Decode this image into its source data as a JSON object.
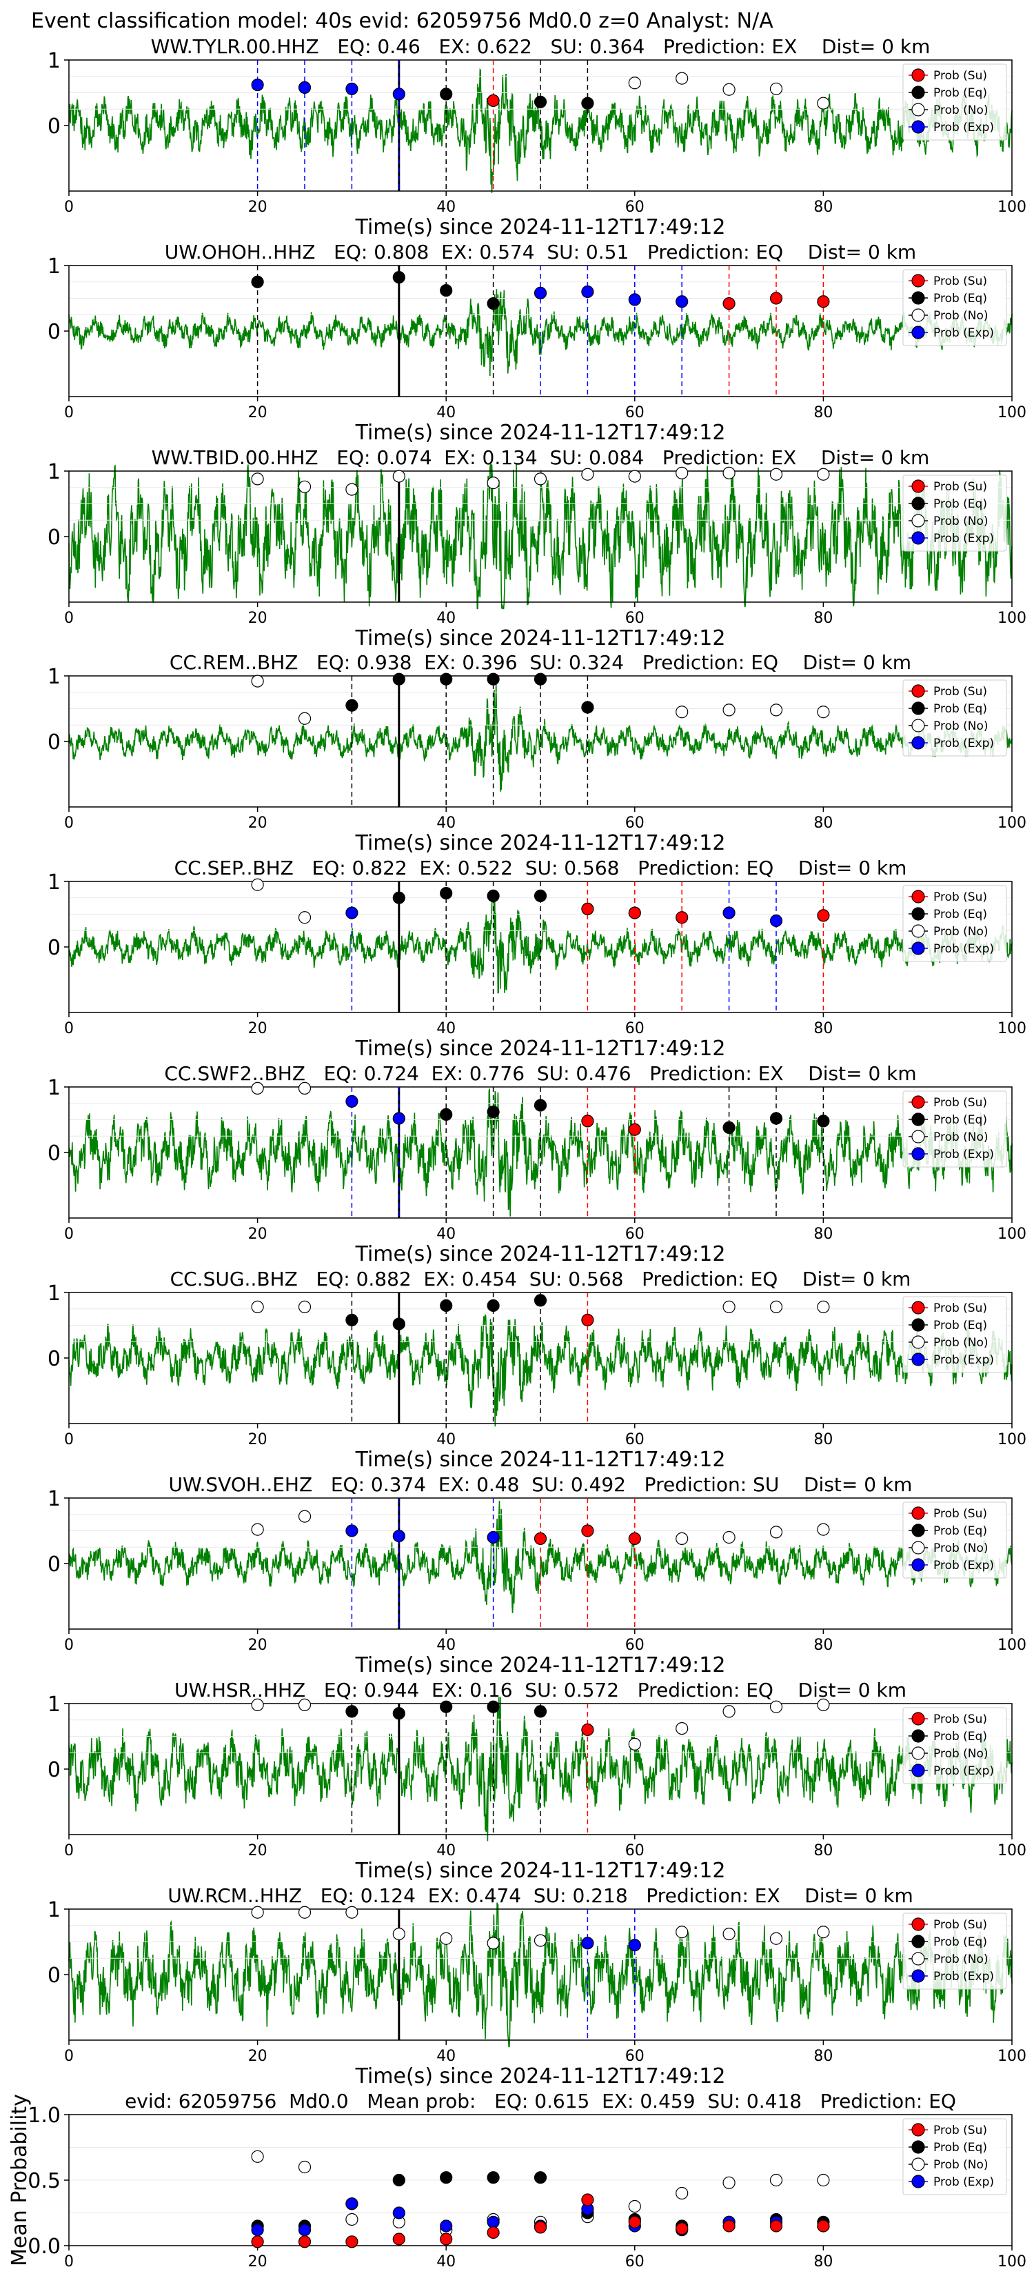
{
  "figure_title": "Event classification model: 40s evid: 62059756 Md0.0 z=0 Analyst: N/A",
  "legend_entries": [
    "Prob (Su)",
    "Prob (Eq)",
    "Prob (No)",
    "Prob (Exp)"
  ],
  "colors": {
    "waveform": "#008000",
    "su": "#ff0000",
    "eq": "#000000",
    "no": "#ffffff",
    "exp": "#0000ff"
  },
  "chart_data": [
    {
      "type": "scatter",
      "title": "WW.TYLR.00.HHZ   EQ: 0.46   EX: 0.622   SU: 0.364   Prediction: EX    Dist= 0 km",
      "xlabel": "Time(s) since 2024-11-12T17:49:12",
      "xlim": [
        0,
        100
      ],
      "ylim": [
        -1,
        1
      ],
      "x_ticks": [
        0,
        20,
        40,
        60,
        80,
        100
      ],
      "y_ticks": [
        0,
        1
      ],
      "pick_time": 35,
      "waveform_amplitude": 0.35,
      "points": [
        [
          20,
          0.62,
          "exp"
        ],
        [
          25,
          0.58,
          "exp"
        ],
        [
          30,
          0.56,
          "exp"
        ],
        [
          35,
          0.48,
          "exp"
        ],
        [
          40,
          0.48,
          "eq"
        ],
        [
          45,
          0.38,
          "su"
        ],
        [
          50,
          0.36,
          "eq"
        ],
        [
          55,
          0.34,
          "eq"
        ],
        [
          60,
          0.65,
          "no"
        ],
        [
          65,
          0.72,
          "no"
        ],
        [
          70,
          0.55,
          "no"
        ],
        [
          75,
          0.56,
          "no"
        ],
        [
          80,
          0.34,
          "no"
        ]
      ]
    },
    {
      "type": "scatter",
      "title": "UW.OHOH..HHZ   EQ: 0.808  EX: 0.574  SU: 0.51   Prediction: EQ    Dist= 0 km",
      "xlabel": "Time(s) since 2024-11-12T17:49:12",
      "xlim": [
        0,
        100
      ],
      "ylim": [
        -1,
        1
      ],
      "x_ticks": [
        0,
        20,
        40,
        60,
        80,
        100
      ],
      "y_ticks": [
        0,
        1
      ],
      "pick_time": 35,
      "waveform_amplitude": 0.2,
      "points": [
        [
          20,
          0.75,
          "eq"
        ],
        [
          35,
          0.82,
          "eq"
        ],
        [
          40,
          0.62,
          "eq"
        ],
        [
          45,
          0.42,
          "eq"
        ],
        [
          50,
          0.58,
          "exp"
        ],
        [
          55,
          0.6,
          "exp"
        ],
        [
          60,
          0.48,
          "exp"
        ],
        [
          65,
          0.45,
          "exp"
        ],
        [
          70,
          0.42,
          "su"
        ],
        [
          75,
          0.5,
          "su"
        ],
        [
          80,
          0.45,
          "su"
        ]
      ]
    },
    {
      "type": "scatter",
      "title": "WW.TBID.00.HHZ   EQ: 0.074  EX: 0.134  SU: 0.084   Prediction: EX    Dist= 0 km",
      "xlabel": "Time(s) since 2024-11-12T17:49:12",
      "xlim": [
        0,
        100
      ],
      "ylim": [
        -1,
        1
      ],
      "x_ticks": [
        0,
        20,
        40,
        60,
        80,
        100
      ],
      "y_ticks": [
        0,
        1
      ],
      "pick_time": 35,
      "waveform_amplitude": 0.75,
      "points": [
        [
          20,
          0.88,
          "no"
        ],
        [
          25,
          0.76,
          "no"
        ],
        [
          30,
          0.72,
          "no"
        ],
        [
          35,
          0.92,
          "no"
        ],
        [
          45,
          0.82,
          "no"
        ],
        [
          50,
          0.88,
          "no"
        ],
        [
          55,
          0.95,
          "no"
        ],
        [
          60,
          0.92,
          "no"
        ],
        [
          65,
          0.97,
          "no"
        ],
        [
          70,
          0.97,
          "no"
        ],
        [
          75,
          0.95,
          "no"
        ],
        [
          80,
          0.95,
          "no"
        ]
      ]
    },
    {
      "type": "scatter",
      "title": "CC.REM..BHZ   EQ: 0.938  EX: 0.396  SU: 0.324   Prediction: EQ    Dist= 0 km",
      "xlabel": "Time(s) since 2024-11-12T17:49:12",
      "xlim": [
        0,
        100
      ],
      "ylim": [
        -1,
        1
      ],
      "x_ticks": [
        0,
        20,
        40,
        60,
        80,
        100
      ],
      "y_ticks": [
        0,
        1
      ],
      "pick_time": 35,
      "waveform_amplitude": 0.2,
      "points": [
        [
          20,
          0.92,
          "no"
        ],
        [
          25,
          0.35,
          "no"
        ],
        [
          30,
          0.55,
          "eq"
        ],
        [
          35,
          0.95,
          "eq"
        ],
        [
          40,
          0.95,
          "eq"
        ],
        [
          45,
          0.95,
          "eq"
        ],
        [
          50,
          0.95,
          "eq"
        ],
        [
          55,
          0.52,
          "eq"
        ],
        [
          65,
          0.45,
          "no"
        ],
        [
          70,
          0.48,
          "no"
        ],
        [
          75,
          0.48,
          "no"
        ],
        [
          80,
          0.45,
          "no"
        ]
      ]
    },
    {
      "type": "scatter",
      "title": "CC.SEP..BHZ   EQ: 0.822  EX: 0.522  SU: 0.568   Prediction: EQ    Dist= 0 km",
      "xlabel": "Time(s) since 2024-11-12T17:49:12",
      "xlim": [
        0,
        100
      ],
      "ylim": [
        -1,
        1
      ],
      "x_ticks": [
        0,
        20,
        40,
        60,
        80,
        100
      ],
      "y_ticks": [
        0,
        1
      ],
      "pick_time": 35,
      "waveform_amplitude": 0.22,
      "points": [
        [
          20,
          0.95,
          "no"
        ],
        [
          25,
          0.45,
          "no"
        ],
        [
          30,
          0.52,
          "exp"
        ],
        [
          35,
          0.75,
          "eq"
        ],
        [
          40,
          0.82,
          "eq"
        ],
        [
          45,
          0.78,
          "eq"
        ],
        [
          50,
          0.78,
          "eq"
        ],
        [
          55,
          0.58,
          "su"
        ],
        [
          60,
          0.52,
          "su"
        ],
        [
          65,
          0.45,
          "su"
        ],
        [
          70,
          0.52,
          "exp"
        ],
        [
          75,
          0.4,
          "exp"
        ],
        [
          80,
          0.48,
          "su"
        ]
      ]
    },
    {
      "type": "scatter",
      "title": "CC.SWF2..BHZ   EQ: 0.724  EX: 0.776  SU: 0.476   Prediction: EX    Dist= 0 km",
      "xlabel": "Time(s) since 2024-11-12T17:49:12",
      "xlim": [
        0,
        100
      ],
      "ylim": [
        -1,
        1
      ],
      "x_ticks": [
        0,
        20,
        40,
        60,
        80,
        100
      ],
      "y_ticks": [
        0,
        1
      ],
      "pick_time": 35,
      "waveform_amplitude": 0.45,
      "points": [
        [
          20,
          0.98,
          "no"
        ],
        [
          25,
          0.98,
          "no"
        ],
        [
          30,
          0.78,
          "exp"
        ],
        [
          35,
          0.52,
          "exp"
        ],
        [
          40,
          0.58,
          "eq"
        ],
        [
          45,
          0.62,
          "eq"
        ],
        [
          50,
          0.72,
          "eq"
        ],
        [
          55,
          0.48,
          "su"
        ],
        [
          60,
          0.35,
          "su"
        ],
        [
          70,
          0.38,
          "eq"
        ],
        [
          75,
          0.52,
          "eq"
        ],
        [
          80,
          0.48,
          "eq"
        ]
      ]
    },
    {
      "type": "scatter",
      "title": "CC.SUG..BHZ   EQ: 0.882  EX: 0.454  SU: 0.568   Prediction: EQ    Dist= 0 km",
      "xlabel": "Time(s) since 2024-11-12T17:49:12",
      "xlim": [
        0,
        100
      ],
      "ylim": [
        -1,
        1
      ],
      "x_ticks": [
        0,
        20,
        40,
        60,
        80,
        100
      ],
      "y_ticks": [
        0,
        1
      ],
      "pick_time": 35,
      "waveform_amplitude": 0.35,
      "points": [
        [
          20,
          0.78,
          "no"
        ],
        [
          25,
          0.78,
          "no"
        ],
        [
          30,
          0.58,
          "eq"
        ],
        [
          35,
          0.52,
          "eq"
        ],
        [
          40,
          0.8,
          "eq"
        ],
        [
          45,
          0.8,
          "eq"
        ],
        [
          50,
          0.88,
          "eq"
        ],
        [
          55,
          0.58,
          "su"
        ],
        [
          70,
          0.78,
          "no"
        ],
        [
          75,
          0.78,
          "no"
        ],
        [
          80,
          0.78,
          "no"
        ]
      ]
    },
    {
      "type": "scatter",
      "title": "UW.SVOH..EHZ   EQ: 0.374  EX: 0.48  SU: 0.492   Prediction: SU    Dist= 0 km",
      "xlabel": "Time(s) since 2024-11-12T17:49:12",
      "xlim": [
        0,
        100
      ],
      "ylim": [
        -1,
        1
      ],
      "x_ticks": [
        0,
        20,
        40,
        60,
        80,
        100
      ],
      "y_ticks": [
        0,
        1
      ],
      "pick_time": 35,
      "waveform_amplitude": 0.25,
      "points": [
        [
          20,
          0.52,
          "no"
        ],
        [
          25,
          0.72,
          "no"
        ],
        [
          30,
          0.5,
          "exp"
        ],
        [
          35,
          0.42,
          "exp"
        ],
        [
          45,
          0.4,
          "exp"
        ],
        [
          50,
          0.38,
          "su"
        ],
        [
          55,
          0.5,
          "su"
        ],
        [
          60,
          0.38,
          "su"
        ],
        [
          65,
          0.38,
          "no"
        ],
        [
          70,
          0.4,
          "no"
        ],
        [
          75,
          0.48,
          "no"
        ],
        [
          80,
          0.52,
          "no"
        ]
      ]
    },
    {
      "type": "scatter",
      "title": "UW.HSR..HHZ   EQ: 0.944  EX: 0.16  SU: 0.572   Prediction: EQ    Dist= 0 km",
      "xlabel": "Time(s) since 2024-11-12T17:49:12",
      "xlim": [
        0,
        100
      ],
      "ylim": [
        -1,
        1
      ],
      "x_ticks": [
        0,
        20,
        40,
        60,
        80,
        100
      ],
      "y_ticks": [
        0,
        1
      ],
      "pick_time": 35,
      "waveform_amplitude": 0.45,
      "points": [
        [
          20,
          0.98,
          "no"
        ],
        [
          25,
          0.98,
          "no"
        ],
        [
          30,
          0.88,
          "eq"
        ],
        [
          35,
          0.85,
          "eq"
        ],
        [
          40,
          0.95,
          "eq"
        ],
        [
          45,
          0.95,
          "eq"
        ],
        [
          50,
          0.88,
          "eq"
        ],
        [
          55,
          0.6,
          "su"
        ],
        [
          60,
          0.38,
          "no"
        ],
        [
          65,
          0.62,
          "no"
        ],
        [
          70,
          0.88,
          "no"
        ],
        [
          75,
          0.95,
          "no"
        ],
        [
          80,
          0.98,
          "no"
        ]
      ]
    },
    {
      "type": "scatter",
      "title": "UW.RCM..HHZ   EQ: 0.124  EX: 0.474  SU: 0.218   Prediction: EX    Dist= 0 km",
      "xlabel": "Time(s) since 2024-11-12T17:49:12",
      "xlim": [
        0,
        100
      ],
      "ylim": [
        -1,
        1
      ],
      "x_ticks": [
        0,
        20,
        40,
        60,
        80,
        100
      ],
      "y_ticks": [
        0,
        1
      ],
      "pick_time": 35,
      "waveform_amplitude": 0.55,
      "points": [
        [
          20,
          0.95,
          "no"
        ],
        [
          25,
          0.95,
          "no"
        ],
        [
          30,
          0.95,
          "no"
        ],
        [
          35,
          0.62,
          "no"
        ],
        [
          40,
          0.55,
          "no"
        ],
        [
          45,
          0.48,
          "no"
        ],
        [
          50,
          0.52,
          "no"
        ],
        [
          55,
          0.48,
          "exp"
        ],
        [
          60,
          0.45,
          "exp"
        ],
        [
          65,
          0.65,
          "no"
        ],
        [
          70,
          0.62,
          "no"
        ],
        [
          75,
          0.55,
          "no"
        ],
        [
          80,
          0.65,
          "no"
        ]
      ]
    },
    {
      "type": "scatter",
      "title": "evid: 62059756  Md0.0   Mean prob:   EQ: 0.615  EX: 0.459  SU: 0.418   Prediction: EQ",
      "xlabel": "",
      "ylabel": "Mean Probability",
      "xlim": [
        0,
        100
      ],
      "ylim": [
        0,
        1
      ],
      "x_ticks": [
        0,
        20,
        40,
        60,
        80,
        100
      ],
      "y_ticks": [
        0.0,
        0.5,
        1.0
      ],
      "points": [
        [
          20,
          0.68,
          "no"
        ],
        [
          25,
          0.6,
          "no"
        ],
        [
          30,
          0.2,
          "no"
        ],
        [
          35,
          0.18,
          "no"
        ],
        [
          40,
          0.12,
          "no"
        ],
        [
          45,
          0.2,
          "no"
        ],
        [
          50,
          0.18,
          "no"
        ],
        [
          55,
          0.22,
          "no"
        ],
        [
          60,
          0.3,
          "no"
        ],
        [
          65,
          0.4,
          "no"
        ],
        [
          70,
          0.48,
          "no"
        ],
        [
          75,
          0.5,
          "no"
        ],
        [
          80,
          0.5,
          "no"
        ],
        [
          20,
          0.15,
          "eq"
        ],
        [
          25,
          0.15,
          "eq"
        ],
        [
          30,
          0.32,
          "eq"
        ],
        [
          35,
          0.5,
          "eq"
        ],
        [
          40,
          0.52,
          "eq"
        ],
        [
          45,
          0.52,
          "eq"
        ],
        [
          50,
          0.52,
          "eq"
        ],
        [
          55,
          0.25,
          "eq"
        ],
        [
          60,
          0.2,
          "eq"
        ],
        [
          65,
          0.15,
          "eq"
        ],
        [
          70,
          0.18,
          "eq"
        ],
        [
          75,
          0.2,
          "eq"
        ],
        [
          80,
          0.18,
          "eq"
        ],
        [
          20,
          0.12,
          "exp"
        ],
        [
          25,
          0.12,
          "exp"
        ],
        [
          30,
          0.32,
          "exp"
        ],
        [
          35,
          0.25,
          "exp"
        ],
        [
          40,
          0.15,
          "exp"
        ],
        [
          45,
          0.18,
          "exp"
        ],
        [
          50,
          0.15,
          "exp"
        ],
        [
          55,
          0.28,
          "exp"
        ],
        [
          60,
          0.15,
          "exp"
        ],
        [
          65,
          0.12,
          "exp"
        ],
        [
          70,
          0.18,
          "exp"
        ],
        [
          75,
          0.18,
          "exp"
        ],
        [
          80,
          0.15,
          "exp"
        ],
        [
          20,
          0.03,
          "su"
        ],
        [
          25,
          0.03,
          "su"
        ],
        [
          30,
          0.03,
          "su"
        ],
        [
          35,
          0.05,
          "su"
        ],
        [
          40,
          0.05,
          "su"
        ],
        [
          45,
          0.1,
          "su"
        ],
        [
          50,
          0.14,
          "su"
        ],
        [
          55,
          0.35,
          "su"
        ],
        [
          60,
          0.18,
          "su"
        ],
        [
          65,
          0.13,
          "su"
        ],
        [
          70,
          0.15,
          "su"
        ],
        [
          75,
          0.15,
          "su"
        ],
        [
          80,
          0.15,
          "su"
        ]
      ]
    }
  ]
}
